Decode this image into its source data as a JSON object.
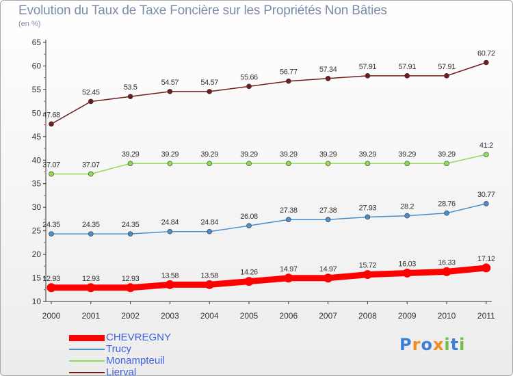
{
  "chart_data": {
    "type": "line",
    "title": "Evolution du Taux de Taxe Foncière sur les Propriétés Non Bâties",
    "ylabel": "(en %)",
    "xlabel": "",
    "ylim": [
      10,
      65
    ],
    "yticks": [
      10,
      15,
      20,
      25,
      30,
      35,
      40,
      45,
      50,
      55,
      60,
      65
    ],
    "categories": [
      "2000",
      "2001",
      "2002",
      "2003",
      "2004",
      "2005",
      "2006",
      "2007",
      "2008",
      "2009",
      "2010",
      "2011"
    ],
    "series": [
      {
        "name": "CHEVREGNY",
        "color": "#ff0000",
        "values": [
          12.93,
          12.93,
          12.93,
          13.58,
          13.58,
          14.26,
          14.97,
          14.97,
          15.72,
          16.03,
          16.33,
          17.12
        ],
        "labels": [
          "12.93",
          "12.93",
          "12.93",
          "13.58",
          "13.58",
          "14.26",
          "14.97",
          "14.97",
          "15.72",
          "16.03",
          "16.33",
          "17.12"
        ]
      },
      {
        "name": "Trucy",
        "color": "#4b8ec9",
        "values": [
          24.35,
          24.35,
          24.35,
          24.84,
          24.84,
          26.08,
          27.38,
          27.38,
          27.93,
          28.2,
          28.76,
          30.77
        ],
        "labels": [
          "24.35",
          "24.35",
          "24.35",
          "24.84",
          "24.84",
          "26.08",
          "27.38",
          "27.38",
          "27.93",
          "28.2",
          "28.76",
          "30.77"
        ]
      },
      {
        "name": "Monampteuil",
        "color": "#8fdb56",
        "values": [
          37.07,
          37.07,
          39.29,
          39.29,
          39.29,
          39.29,
          39.29,
          39.29,
          39.29,
          39.29,
          39.29,
          41.2
        ],
        "labels": [
          "37.07",
          "37.07",
          "39.29",
          "39.29",
          "39.29",
          "39.29",
          "39.29",
          "39.29",
          "39.29",
          "39.29",
          "39.29",
          "41.2"
        ]
      },
      {
        "name": "Lierval",
        "color": "#6e1d1d",
        "values": [
          47.68,
          52.45,
          53.5,
          54.57,
          54.57,
          55.66,
          56.77,
          57.34,
          57.91,
          57.91,
          57.91,
          60.72
        ],
        "labels": [
          "47.68",
          "52.45",
          "53.5",
          "54.57",
          "54.57",
          "55.66",
          "56.77",
          "57.34",
          "57.91",
          "57.91",
          "57.91",
          "60.72"
        ]
      }
    ],
    "grid": false,
    "legend": "bottom-left"
  },
  "logo": {
    "letters": [
      "P",
      "r",
      "o",
      "x",
      "i",
      "t",
      "i"
    ],
    "colors": [
      "#3d7fd6",
      "#f28a1e",
      "#3d7fd6",
      "#f28a1e",
      "#6cc04a",
      "#3d7fd6",
      "#6cc04a"
    ]
  }
}
